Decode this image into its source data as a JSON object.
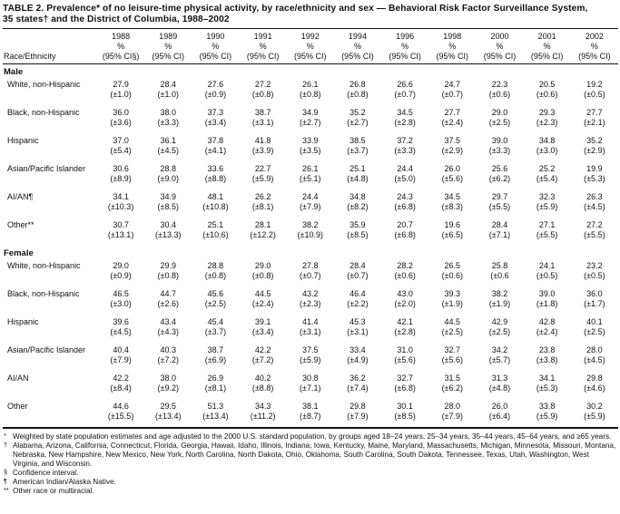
{
  "title": {
    "line1": "TABLE 2. Prevalence* of no leisure-time physical activity, by race/ethnicity and sex — Behavioral Risk Factor Surveillance System,",
    "line2": "35 states† and the District of Columbia, 1988–2002"
  },
  "table": {
    "row_header": "Race/Ethnicity",
    "columns": [
      {
        "year": "1988",
        "pct": "%",
        "ci": "(95% CI§)"
      },
      {
        "year": "1989",
        "pct": "%",
        "ci": "(95% CI)"
      },
      {
        "year": "1990",
        "pct": "%",
        "ci": "(95% CI)"
      },
      {
        "year": "1991",
        "pct": "%",
        "ci": "(95% CI)"
      },
      {
        "year": "1992",
        "pct": "%",
        "ci": "(95% CI)"
      },
      {
        "year": "1994",
        "pct": "%",
        "ci": "(95% CI)"
      },
      {
        "year": "1996",
        "pct": "%",
        "ci": "(95% CI)"
      },
      {
        "year": "1998",
        "pct": "%",
        "ci": "(95% CI)"
      },
      {
        "year": "2000",
        "pct": "%",
        "ci": "(95% CI)"
      },
      {
        "year": "2001",
        "pct": "%",
        "ci": "(95% CI)"
      },
      {
        "year": "2002",
        "pct": "%",
        "ci": "(95% CI)"
      }
    ],
    "sections": [
      {
        "name": "Male",
        "rows": [
          {
            "label": "White, non-Hispanic",
            "cells": [
              [
                "27.9",
                "(±1.0)"
              ],
              [
                "28.4",
                "(±1.0)"
              ],
              [
                "27.6",
                "(±0.9)"
              ],
              [
                "27.2",
                "(±0.8)"
              ],
              [
                "26.1",
                "(±0.8)"
              ],
              [
                "26.8",
                "(±0.8)"
              ],
              [
                "26.6",
                "(±0.7)"
              ],
              [
                "24.7",
                "(±0.7)"
              ],
              [
                "22.3",
                "(±0.6)"
              ],
              [
                "20.5",
                "(±0.6)"
              ],
              [
                "19.2",
                "(±0.5)"
              ]
            ]
          },
          {
            "label": "Black, non-Hispanic",
            "cells": [
              [
                "36.0",
                "(±3.6)"
              ],
              [
                "38.0",
                "(±3.3)"
              ],
              [
                "37.3",
                "(±3.4)"
              ],
              [
                "38.7",
                "(±3.1)"
              ],
              [
                "34.9",
                "(±2.7)"
              ],
              [
                "35.2",
                "(±2.7)"
              ],
              [
                "34.5",
                "(±2.8)"
              ],
              [
                "27.7",
                "(±2.4)"
              ],
              [
                "29.0",
                "(±2.5)"
              ],
              [
                "29.3",
                "(±2.3)"
              ],
              [
                "27.7",
                "(±2.1)"
              ]
            ]
          },
          {
            "label": "Hispanic",
            "cells": [
              [
                "37.0",
                "(±5.4)"
              ],
              [
                "36.1",
                "(±4.5)"
              ],
              [
                "37.8",
                "(±4.1)"
              ],
              [
                "41.8",
                "(±3.9)"
              ],
              [
                "33.9",
                "(±3.5)"
              ],
              [
                "38.5",
                "(±3.7)"
              ],
              [
                "37.2",
                "(±3.3)"
              ],
              [
                "37.5",
                "(±2.9)"
              ],
              [
                "39.0",
                "(±3.3)"
              ],
              [
                "34.8",
                "(±3.0)"
              ],
              [
                "35.2",
                "(±2.9)"
              ]
            ]
          },
          {
            "label": "Asian/Pacific Islander",
            "cells": [
              [
                "30.6",
                "(±8.9)"
              ],
              [
                "28.8",
                "(±9.0)"
              ],
              [
                "33.6",
                "(±8.8)"
              ],
              [
                "22.7",
                "(±5.9)"
              ],
              [
                "26.1",
                "(±5.1)"
              ],
              [
                "25.1",
                "(±4.8)"
              ],
              [
                "24.4",
                "(±5.0)"
              ],
              [
                "26.0",
                "(±5.6)"
              ],
              [
                "25.6",
                "(±6.2)"
              ],
              [
                "25.2",
                "(±5.4)"
              ],
              [
                "19.9",
                "(±5.3)"
              ]
            ]
          },
          {
            "label": "AI/AN¶",
            "cells": [
              [
                "34.1",
                "(±10.3)"
              ],
              [
                "34.9",
                "(±8.5)"
              ],
              [
                "48.1",
                "(±10.8)"
              ],
              [
                "26.2",
                "(±8.1)"
              ],
              [
                "24.4",
                "(±7.9)"
              ],
              [
                "34.8",
                "(±8.2)"
              ],
              [
                "24.3",
                "(±6.8)"
              ],
              [
                "34.5",
                "(±8.3)"
              ],
              [
                "29.7",
                "(±5.5)"
              ],
              [
                "32.3",
                "(±5.9)"
              ],
              [
                "26.3",
                "(±4.5)"
              ]
            ]
          },
          {
            "label": "Other**",
            "cells": [
              [
                "30.7",
                "(±13.1)"
              ],
              [
                "30.4",
                "(±13.3)"
              ],
              [
                "25.1",
                "(±10.6)"
              ],
              [
                "28.1",
                "(±12.2)"
              ],
              [
                "38.2",
                "(±10.9)"
              ],
              [
                "35.9",
                "(±8.5)"
              ],
              [
                "20.7",
                "(±6.8)"
              ],
              [
                "19.6",
                "(±6.5)"
              ],
              [
                "28.4",
                "(±7.1)"
              ],
              [
                "27.1",
                "(±5.5)"
              ],
              [
                "27.2",
                "(±5.5)"
              ]
            ]
          }
        ]
      },
      {
        "name": "Female",
        "rows": [
          {
            "label": "White, non-Hispanic",
            "cells": [
              [
                "29.0",
                "(±0.9)"
              ],
              [
                "29.9",
                "(±0.8)"
              ],
              [
                "28.8",
                "(±0.8)"
              ],
              [
                "29.0",
                "(±0.8)"
              ],
              [
                "27.8",
                "(±0.7)"
              ],
              [
                "28.4",
                "(±0.7)"
              ],
              [
                "28.2",
                "(±0.6)"
              ],
              [
                "26.5",
                "(±0.6)"
              ],
              [
                "25.8",
                "(±0.6"
              ],
              [
                "24.1",
                "(±0.5)"
              ],
              [
                "23.2",
                "(±0.5)"
              ]
            ]
          },
          {
            "label": "Black, non-Hispanic",
            "cells": [
              [
                "46.5",
                "(±3.0)"
              ],
              [
                "44.7",
                "(±2.6)"
              ],
              [
                "45.6",
                "(±2.5)"
              ],
              [
                "44.5",
                "(±2.4)"
              ],
              [
                "43.2",
                "(±2.3)"
              ],
              [
                "46.4",
                "(±2.2)"
              ],
              [
                "43.0",
                "(±2.0)"
              ],
              [
                "39.3",
                "(±1.9)"
              ],
              [
                "38.2",
                "(±1.9)"
              ],
              [
                "39.0",
                "(±1.8)"
              ],
              [
                "36.0",
                "(±1.7)"
              ]
            ]
          },
          {
            "label": "Hispanic",
            "cells": [
              [
                "39.6",
                "(±4.5)"
              ],
              [
                "43.4",
                "(±4.3)"
              ],
              [
                "45.4",
                "(±3.7)"
              ],
              [
                "39.1",
                "(±3.4)"
              ],
              [
                "41.4",
                "(±3.1)"
              ],
              [
                "45.3",
                "(±3.1)"
              ],
              [
                "42.1",
                "(±2.8)"
              ],
              [
                "44.5",
                "(±2.5)"
              ],
              [
                "42.9",
                "(±2.5)"
              ],
              [
                "42.8",
                "(±2.4)"
              ],
              [
                "40.1",
                "(±2.5)"
              ]
            ]
          },
          {
            "label": "Asian/Pacific Islander",
            "cells": [
              [
                "40.4",
                "(±7.9)"
              ],
              [
                "40.3",
                "(±7.2)"
              ],
              [
                "38.7",
                "(±6.9)"
              ],
              [
                "42.2",
                "(±7.2)"
              ],
              [
                "37.5",
                "(±5.9)"
              ],
              [
                "33.4",
                "(±4.9)"
              ],
              [
                "31.0",
                "(±5.6)"
              ],
              [
                "32.7",
                "(±5.6)"
              ],
              [
                "34.2",
                "(±5.7)"
              ],
              [
                "23.8",
                "(±3.8)"
              ],
              [
                "28.0",
                "(±4.5)"
              ]
            ]
          },
          {
            "label": "AI/AN",
            "cells": [
              [
                "42.2",
                "(±8.4)"
              ],
              [
                "38.0",
                "(±9.2)"
              ],
              [
                "26.9",
                "(±8.1)"
              ],
              [
                "40.2",
                "(±8.8)"
              ],
              [
                "30.8",
                "(±7.1)"
              ],
              [
                "36.2",
                "(±7.4)"
              ],
              [
                "32.7",
                "(±6.8)"
              ],
              [
                "31.5",
                "(±6.2)"
              ],
              [
                "31.3",
                "(±4.8)"
              ],
              [
                "34.1",
                "(±5.3)"
              ],
              [
                "29.8",
                "(±4.6)"
              ]
            ]
          },
          {
            "label": "Other",
            "cells": [
              [
                "44.6",
                "(±15.5)"
              ],
              [
                "29.5",
                "(±13.4)"
              ],
              [
                "51.3",
                "(±13.4)"
              ],
              [
                "34.3",
                "(±11.2)"
              ],
              [
                "38.1",
                "(±8.7)"
              ],
              [
                "29.8",
                "(±7.9)"
              ],
              [
                "30.1",
                "(±8.5)"
              ],
              [
                "28.0",
                "(±7.9)"
              ],
              [
                "26.0",
                "(±6.4)"
              ],
              [
                "33.8",
                "(±5.9)"
              ],
              [
                "30.2",
                "(±5.9)"
              ]
            ]
          }
        ]
      }
    ]
  },
  "footnotes": [
    {
      "marker": "*",
      "text": "Weighted by state population estimates and age adjusted to the 2000 U.S. standard population, by groups aged 18–24 years, 25–34 years, 35–44 years, 45–64 years, and ≥65 years."
    },
    {
      "marker": "†",
      "text": "Alabama, Arizona, California, Connecticut, Florida, Georgia, Hawaii, Idaho, Illinois, Indiana, Iowa, Kentucky, Maine, Maryland, Massachusetts, Michigan, Minnesota, Missouri, Montana, Nebraska, New Hampshire, New Mexico, New York, North Carolina, North Dakota, Ohio, Oklahoma, South Carolina, South Dakota, Tennessee, Texas, Utah, Washington, West Virginia, and Wisconsin."
    },
    {
      "marker": "§",
      "text": "Confidence interval."
    },
    {
      "marker": "¶",
      "text": "American Indian/Alaska Native."
    },
    {
      "marker": "**",
      "text": "Other race or multiracial."
    }
  ]
}
